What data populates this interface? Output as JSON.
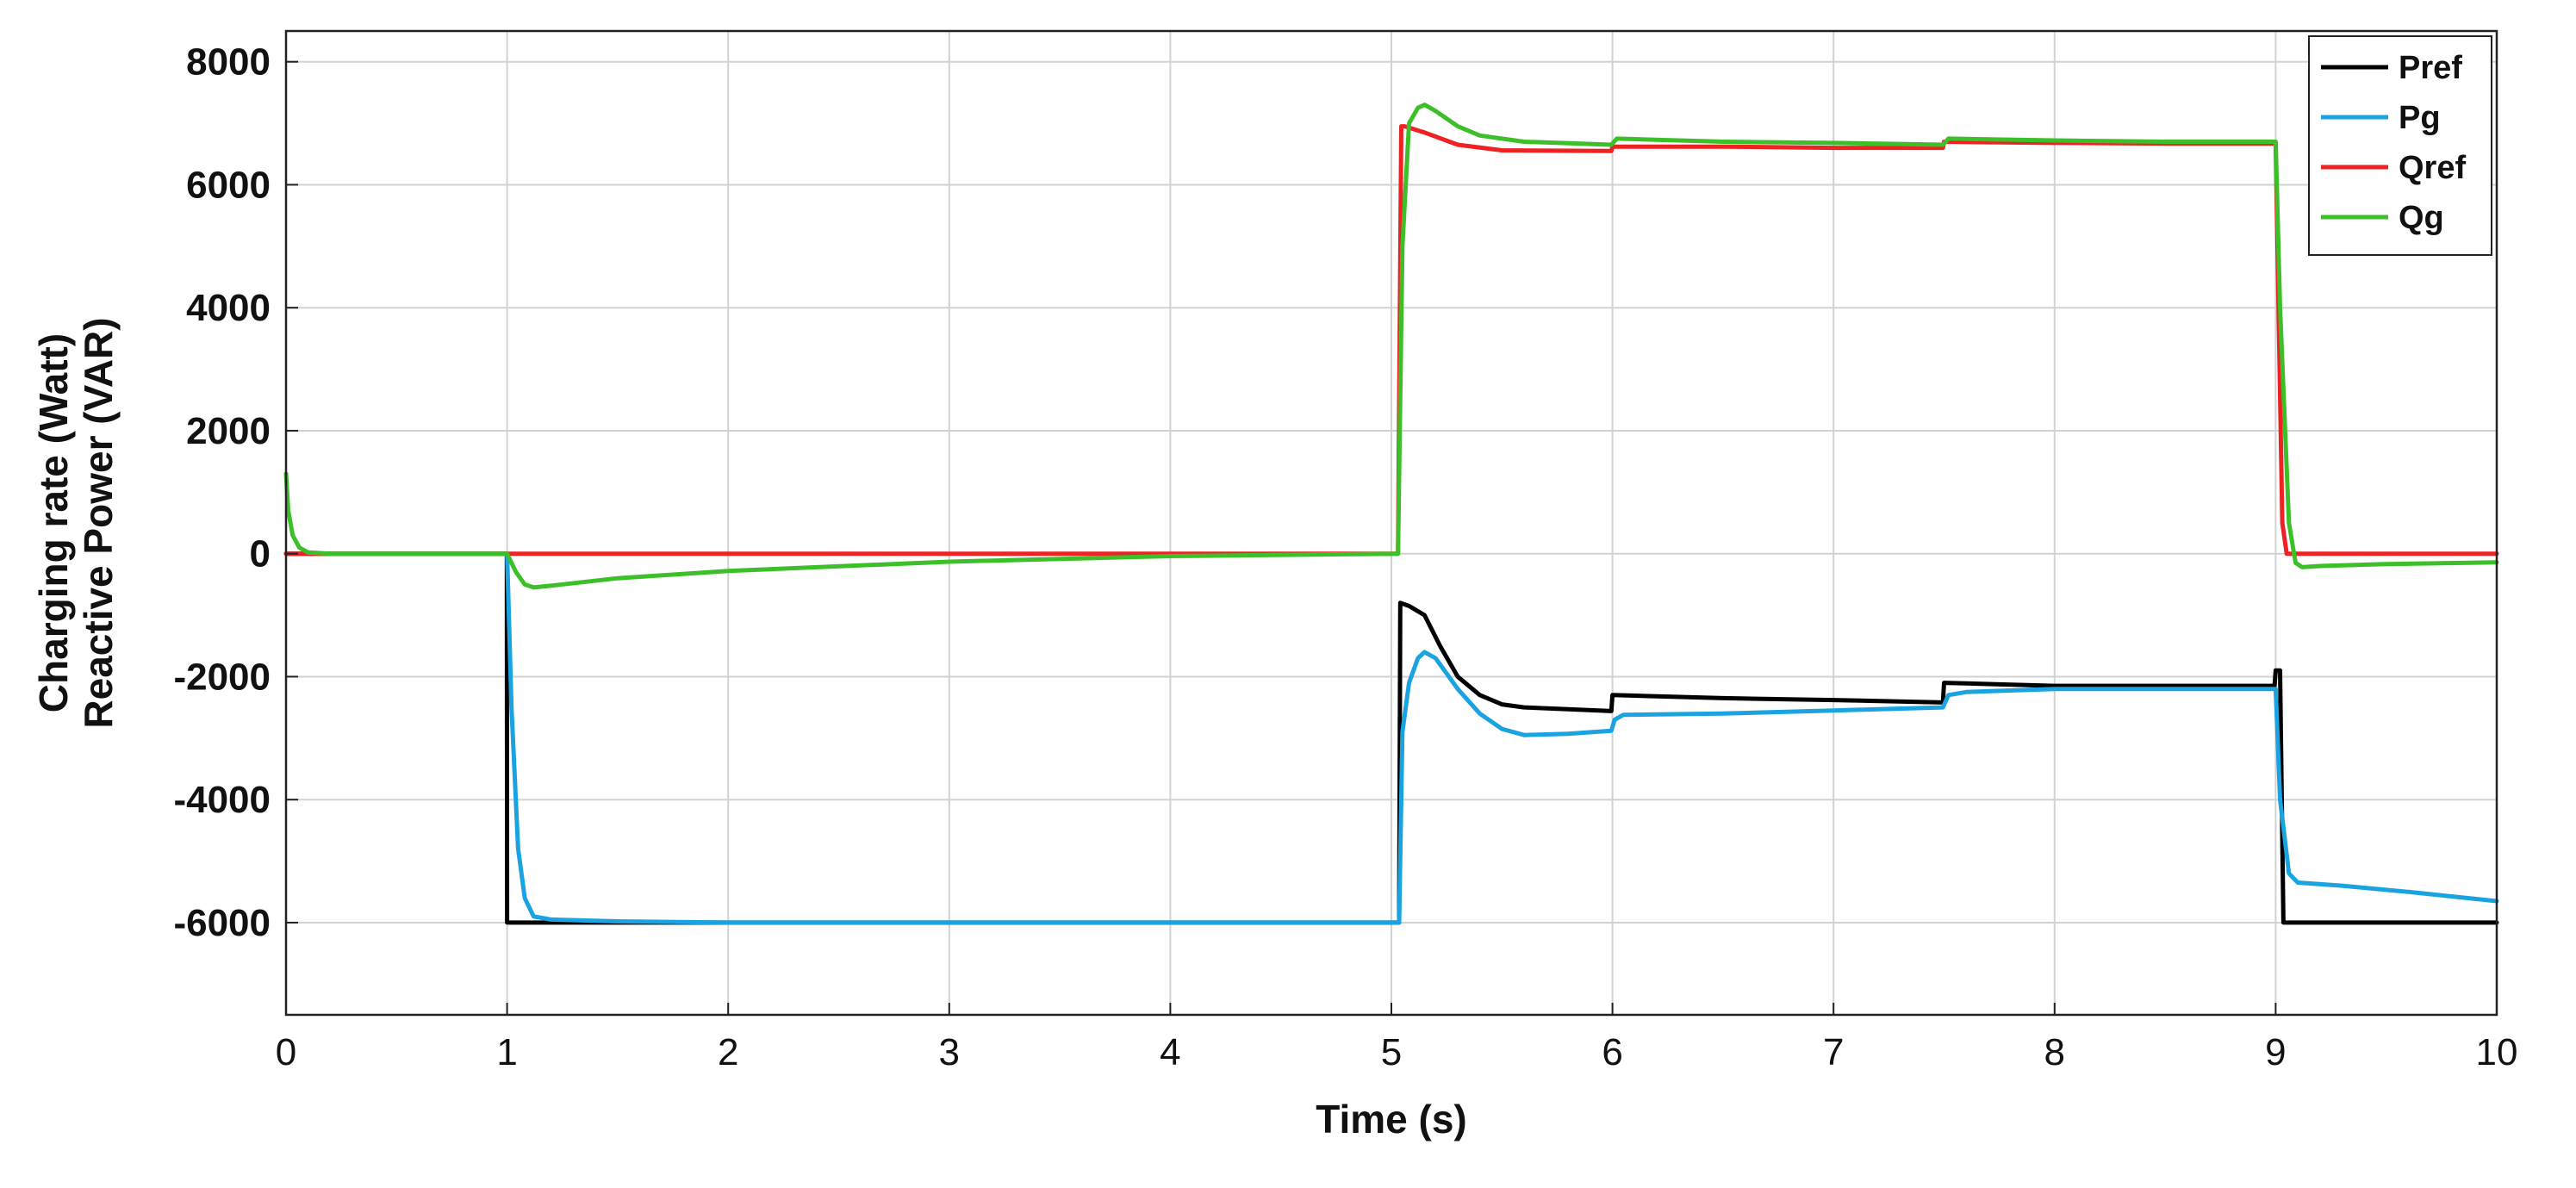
{
  "chart_data": {
    "type": "line",
    "title": "",
    "xlabel": "Time (s)",
    "ylabel_lines": [
      "Charging rate (Watt)",
      "Reactive Power (VAR)"
    ],
    "xlim": [
      0,
      10
    ],
    "ylim": [
      -7500,
      8500
    ],
    "xticks": [
      0,
      1,
      2,
      3,
      4,
      5,
      6,
      7,
      8,
      9,
      10
    ],
    "yticks": [
      -6000,
      -4000,
      -2000,
      0,
      2000,
      4000,
      6000,
      8000
    ],
    "xtick_labels": [
      "0",
      "1",
      "2",
      "3",
      "4",
      "5",
      "6",
      "7",
      "8",
      "9",
      "10"
    ],
    "ytick_labels": [
      "-6000",
      "-4000",
      "-2000",
      "0",
      "2000",
      "4000",
      "6000",
      "8000"
    ],
    "grid": true,
    "legend_position": "top-right",
    "series": [
      {
        "name": "Pref",
        "color": "#000000",
        "x": [
          0,
          0.999,
          1.0,
          5.035,
          5.04,
          5.08,
          5.15,
          5.22,
          5.3,
          5.4,
          5.5,
          5.6,
          5.8,
          5.995,
          6.0,
          6.5,
          7.0,
          7.495,
          7.5,
          7.7,
          8.0,
          8.5,
          8.995,
          9.0,
          9.02,
          9.035,
          10.0
        ],
        "y": [
          0,
          0,
          -6000,
          -6000,
          -800,
          -850,
          -1000,
          -1500,
          -2000,
          -2300,
          -2450,
          -2500,
          -2530,
          -2560,
          -2300,
          -2350,
          -2380,
          -2420,
          -2100,
          -2120,
          -2150,
          -2150,
          -2150,
          -1900,
          -1900,
          -6000,
          -6000
        ]
      },
      {
        "name": "Pg",
        "color": "#1aa3e0",
        "x": [
          0,
          1.0,
          1.02,
          1.05,
          1.08,
          1.12,
          1.2,
          1.5,
          2,
          3,
          4,
          5.03,
          5.035,
          5.05,
          5.08,
          5.12,
          5.15,
          5.2,
          5.3,
          5.4,
          5.5,
          5.6,
          5.8,
          5.995,
          6.01,
          6.05,
          6.5,
          7.0,
          7.495,
          7.52,
          7.6,
          8.0,
          8.5,
          8.995,
          9.0,
          9.02,
          9.06,
          9.1,
          9.3,
          9.6,
          10.0
        ],
        "y": [
          0,
          0,
          -2500,
          -4800,
          -5600,
          -5900,
          -5950,
          -5980,
          -6000,
          -6000,
          -6000,
          -6000,
          -6000,
          -2900,
          -2100,
          -1700,
          -1600,
          -1700,
          -2200,
          -2600,
          -2850,
          -2950,
          -2930,
          -2880,
          -2700,
          -2620,
          -2600,
          -2550,
          -2500,
          -2300,
          -2250,
          -2200,
          -2200,
          -2200,
          -2200,
          -4000,
          -5200,
          -5350,
          -5400,
          -5500,
          -5650
        ]
      },
      {
        "name": "Qref",
        "color": "#ee2222",
        "x": [
          0,
          5.03,
          5.045,
          5.06,
          5.15,
          5.3,
          5.5,
          5.995,
          6.0,
          6.5,
          7.0,
          7.495,
          7.5,
          8.0,
          8.5,
          9.0,
          9.03,
          9.05,
          10.0
        ],
        "y": [
          0,
          0,
          6950,
          6950,
          6850,
          6650,
          6560,
          6550,
          6620,
          6620,
          6600,
          6600,
          6700,
          6680,
          6670,
          6670,
          500,
          0,
          0
        ]
      },
      {
        "name": "Qg",
        "color": "#3dbf2a",
        "x": [
          0,
          0.01,
          0.03,
          0.06,
          0.1,
          0.2,
          0.5,
          0.99,
          1.0,
          1.04,
          1.08,
          1.12,
          1.2,
          1.5,
          2,
          3,
          4,
          5.03,
          5.05,
          5.08,
          5.12,
          5.15,
          5.2,
          5.3,
          5.4,
          5.6,
          5.995,
          6.02,
          6.5,
          7.0,
          7.495,
          7.52,
          8.0,
          8.5,
          9.0,
          9.02,
          9.06,
          9.09,
          9.12,
          9.2,
          9.5,
          10.0
        ],
        "y": [
          1300,
          700,
          300,
          100,
          20,
          0,
          0,
          0,
          0,
          -300,
          -500,
          -550,
          -520,
          -400,
          -280,
          -130,
          -40,
          0,
          5000,
          7000,
          7250,
          7300,
          7200,
          6950,
          6800,
          6700,
          6650,
          6750,
          6700,
          6680,
          6650,
          6750,
          6720,
          6700,
          6700,
          4000,
          500,
          -150,
          -220,
          -200,
          -170,
          -140
        ]
      }
    ]
  }
}
